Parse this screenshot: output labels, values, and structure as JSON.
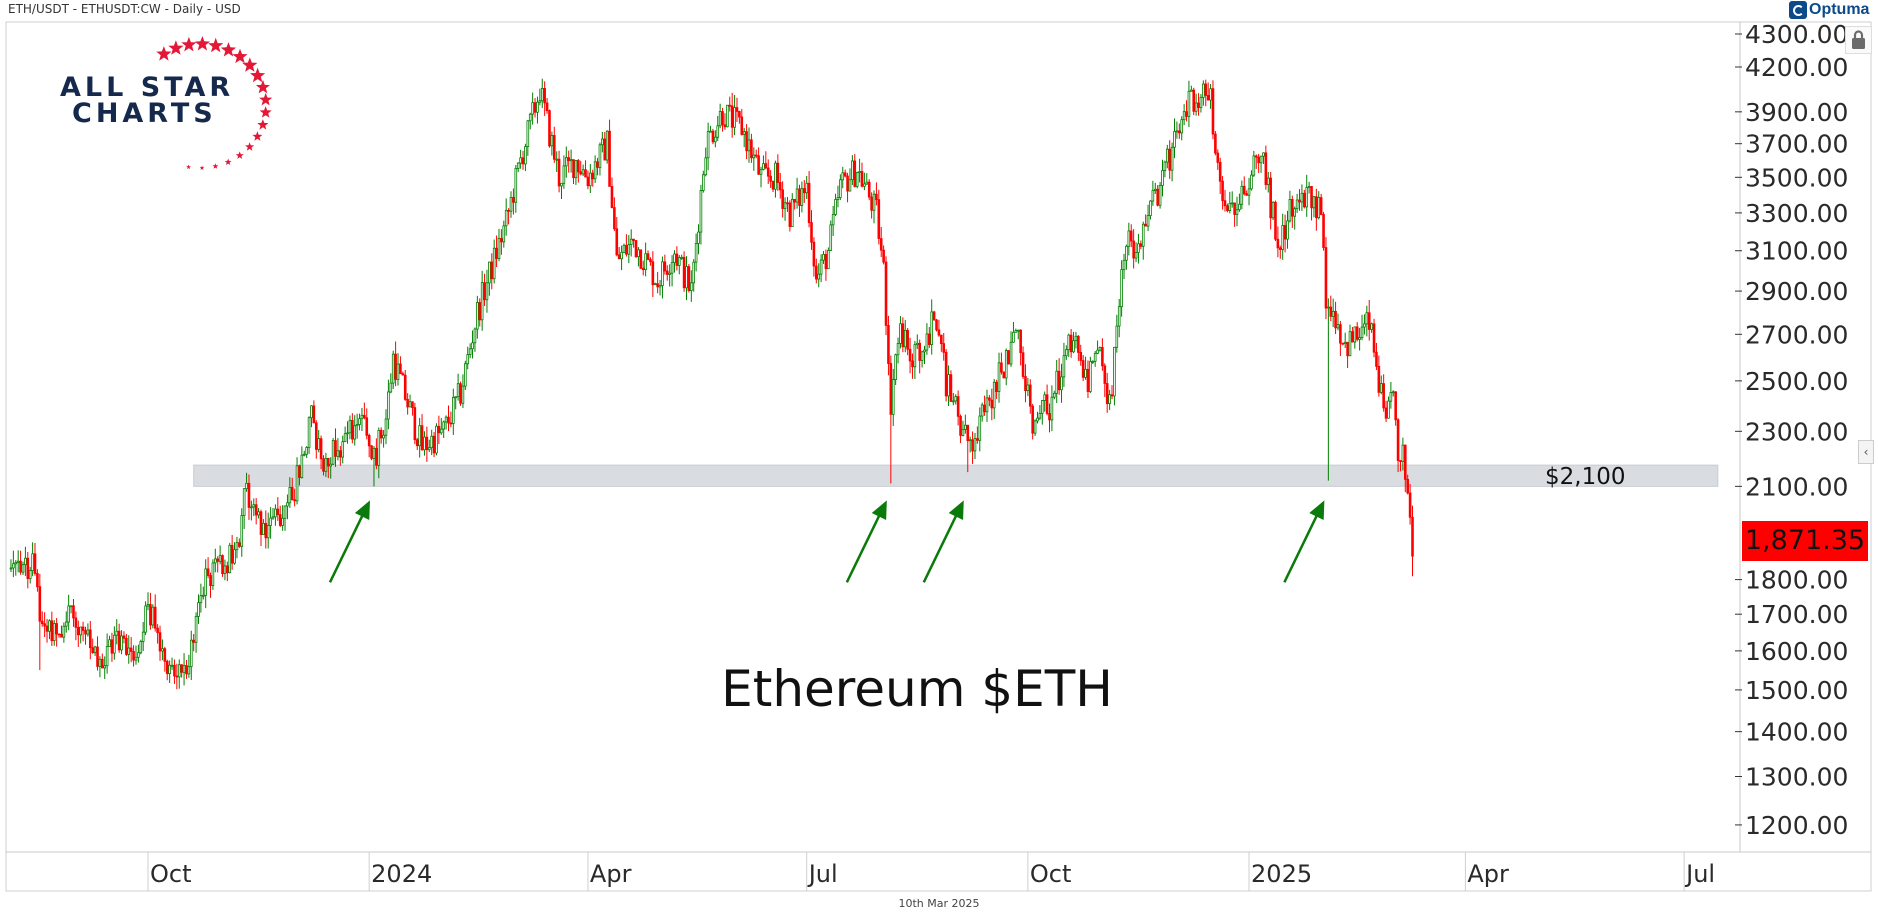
{
  "header": {
    "title": "ETH/USDT - ETHUSDT:CW - Daily - USD"
  },
  "branding": {
    "logo_line1": "ALL STAR",
    "logo_line2": "CHARTS",
    "vendor": "Optuma"
  },
  "footer": {
    "date": "10th Mar 2025"
  },
  "colors": {
    "up": "#008000",
    "down": "#ff0000",
    "band": "#d9dde1",
    "arrow": "#0a7a0a",
    "last_price_bg": "#ff0000",
    "logo_navy": "#14294b",
    "logo_red": "#e31837"
  },
  "icons": {
    "lock": "lock-icon",
    "scroll": "chevron-left-icon"
  },
  "chart_data": {
    "type": "candlestick",
    "title": "Ethereum $ETH",
    "y_scale": "log",
    "ylim": [
      1150,
      4350
    ],
    "y_ticks": [
      "4300.00",
      "4200.00",
      "3900.00",
      "3700.00",
      "3500.00",
      "3300.00",
      "3100.00",
      "2900.00",
      "2700.00",
      "2500.00",
      "2300.00",
      "2100.00",
      "1800.00",
      "1700.00",
      "1600.00",
      "1500.00",
      "1400.00",
      "1300.00",
      "1200.00"
    ],
    "x_ticks": [
      {
        "date": "2023-10-01",
        "label": "Oct"
      },
      {
        "date": "2024-01-01",
        "label": "2024"
      },
      {
        "date": "2024-04-01",
        "label": "Apr"
      },
      {
        "date": "2024-07-01",
        "label": "Jul"
      },
      {
        "date": "2024-10-01",
        "label": "Oct"
      },
      {
        "date": "2025-01-01",
        "label": "2025"
      },
      {
        "date": "2025-04-01",
        "label": "Apr"
      },
      {
        "date": "2025-07-01",
        "label": "Jul"
      }
    ],
    "xlim": [
      "2023-08-03",
      "2025-08-20"
    ],
    "last_price": "1,871.35",
    "support_zone": {
      "low": 2100,
      "high": 2150,
      "label": "$2,100",
      "from": "2023-10-20",
      "to": "2025-07-15"
    },
    "arrows_at": [
      "2024-01-03",
      "2024-08-05",
      "2024-09-06",
      "2025-02-03"
    ],
    "approx_closes": [
      [
        "2023-08-05",
        1835
      ],
      [
        "2023-08-14",
        1840
      ],
      [
        "2023-08-16",
        1810
      ],
      [
        "2023-08-17",
        1680
      ],
      [
        "2023-08-25",
        1650
      ],
      [
        "2023-08-29",
        1720
      ],
      [
        "2023-09-05",
        1630
      ],
      [
        "2023-09-11",
        1550
      ],
      [
        "2023-09-18",
        1640
      ],
      [
        "2023-09-25",
        1590
      ],
      [
        "2023-10-01",
        1730
      ],
      [
        "2023-10-05",
        1630
      ],
      [
        "2023-10-12",
        1540
      ],
      [
        "2023-10-20",
        1600
      ],
      [
        "2023-10-23",
        1790
      ],
      [
        "2023-11-01",
        1850
      ],
      [
        "2023-11-08",
        1890
      ],
      [
        "2023-11-10",
        2100
      ],
      [
        "2023-11-15",
        2000
      ],
      [
        "2023-11-20",
        1960
      ],
      [
        "2023-11-28",
        2050
      ],
      [
        "2023-12-01",
        2100
      ],
      [
        "2023-12-08",
        2350
      ],
      [
        "2023-12-12",
        2200
      ],
      [
        "2023-12-20",
        2250
      ],
      [
        "2023-12-28",
        2350
      ],
      [
        "2024-01-03",
        2200
      ],
      [
        "2024-01-08",
        2350
      ],
      [
        "2024-01-11",
        2600
      ],
      [
        "2024-01-14",
        2500
      ],
      [
        "2024-01-23",
        2240
      ],
      [
        "2024-02-01",
        2300
      ],
      [
        "2024-02-08",
        2450
      ],
      [
        "2024-02-15",
        2800
      ],
      [
        "2024-02-27",
        3250
      ],
      [
        "2024-03-04",
        3600
      ],
      [
        "2024-03-12",
        4050
      ],
      [
        "2024-03-20",
        3500
      ],
      [
        "2024-03-27",
        3600
      ],
      [
        "2024-04-01",
        3500
      ],
      [
        "2024-04-09",
        3700
      ],
      [
        "2024-04-13",
        3050
      ],
      [
        "2024-04-20",
        3150
      ],
      [
        "2024-04-30",
        2950
      ],
      [
        "2024-05-07",
        3100
      ],
      [
        "2024-05-14",
        2900
      ],
      [
        "2024-05-20",
        3700
      ],
      [
        "2024-05-27",
        3900
      ],
      [
        "2024-06-04",
        3800
      ],
      [
        "2024-06-12",
        3500
      ],
      [
        "2024-06-18",
        3500
      ],
      [
        "2024-06-24",
        3300
      ],
      [
        "2024-07-01",
        3450
      ],
      [
        "2024-07-05",
        2950
      ],
      [
        "2024-07-10",
        3100
      ],
      [
        "2024-07-15",
        3450
      ],
      [
        "2024-07-22",
        3550
      ],
      [
        "2024-07-30",
        3300
      ],
      [
        "2024-08-02",
        3000
      ],
      [
        "2024-08-05",
        2420
      ],
      [
        "2024-08-08",
        2700
      ],
      [
        "2024-08-15",
        2600
      ],
      [
        "2024-08-24",
        2780
      ],
      [
        "2024-08-28",
        2500
      ],
      [
        "2024-09-06",
        2250
      ],
      [
        "2024-09-12",
        2350
      ],
      [
        "2024-09-20",
        2550
      ],
      [
        "2024-09-27",
        2700
      ],
      [
        "2024-10-03",
        2350
      ],
      [
        "2024-10-10",
        2400
      ],
      [
        "2024-10-20",
        2700
      ],
      [
        "2024-10-26",
        2500
      ],
      [
        "2024-10-31",
        2600
      ],
      [
        "2024-11-04",
        2400
      ],
      [
        "2024-11-11",
        3200
      ],
      [
        "2024-11-15",
        3050
      ],
      [
        "2024-11-22",
        3350
      ],
      [
        "2024-12-01",
        3700
      ],
      [
        "2024-12-08",
        4000
      ],
      [
        "2024-12-16",
        4000
      ],
      [
        "2024-12-20",
        3400
      ],
      [
        "2024-12-27",
        3350
      ],
      [
        "2025-01-06",
        3650
      ],
      [
        "2025-01-13",
        3150
      ],
      [
        "2025-01-18",
        3300
      ],
      [
        "2025-01-24",
        3400
      ],
      [
        "2025-01-31",
        3300
      ],
      [
        "2025-02-02",
        2870
      ],
      [
        "2025-02-03",
        2880
      ],
      [
        "2025-02-10",
        2650
      ],
      [
        "2025-02-16",
        2700
      ],
      [
        "2025-02-20",
        2750
      ],
      [
        "2025-02-24",
        2500
      ],
      [
        "2025-02-27",
        2300
      ],
      [
        "2025-03-02",
        2500
      ],
      [
        "2025-03-04",
        2150
      ],
      [
        "2025-03-06",
        2200
      ],
      [
        "2025-03-09",
        2020
      ],
      [
        "2025-03-10",
        1871.35
      ]
    ],
    "notable_lows": [
      [
        "2023-08-17",
        1550
      ],
      [
        "2024-01-03",
        2100
      ],
      [
        "2024-08-05",
        2110
      ],
      [
        "2024-09-06",
        2150
      ],
      [
        "2025-02-03",
        2120
      ],
      [
        "2025-03-10",
        1810
      ]
    ]
  }
}
